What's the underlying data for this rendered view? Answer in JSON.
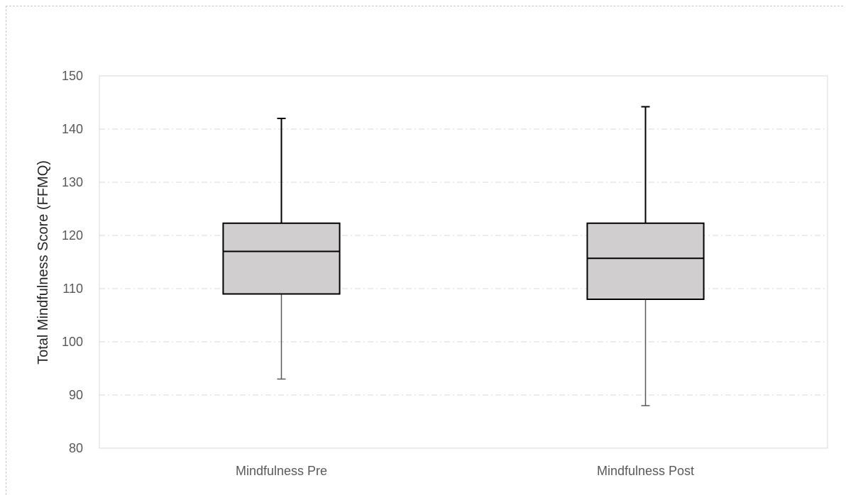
{
  "chart_data": {
    "type": "box",
    "title": "",
    "xlabel": "",
    "ylabel": "Total Mindfulness Score (FFMQ)",
    "ylim": [
      80,
      150
    ],
    "yticks": [
      80,
      90,
      100,
      110,
      120,
      130,
      140,
      150
    ],
    "grid": true,
    "categories": [
      "Mindfulness Pre",
      "Mindfulness Post"
    ],
    "boxes": [
      {
        "category": "Mindfulness Pre",
        "min": 93,
        "q1": 109,
        "median": 117,
        "q3": 122.3,
        "max": 142
      },
      {
        "category": "Mindfulness Post",
        "min": 88,
        "q1": 108,
        "median": 115.7,
        "q3": 122.3,
        "max": 144.2
      }
    ],
    "colors": {
      "box_fill": "#d0cece",
      "box_stroke": "#000000",
      "grid": "#d9d9d9",
      "whisker": "#595959"
    }
  }
}
